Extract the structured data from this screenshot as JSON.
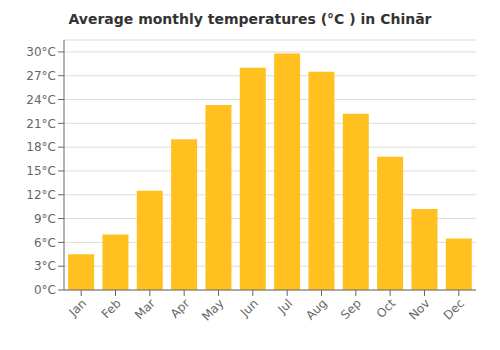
{
  "chart_data": {
    "type": "bar",
    "title": "Average monthly temperatures (°C ) in Chinār",
    "categories": [
      "Jan",
      "Feb",
      "Mar",
      "Apr",
      "May",
      "Jun",
      "Jul",
      "Aug",
      "Sep",
      "Oct",
      "Nov",
      "Dec"
    ],
    "values": [
      4.5,
      7.0,
      12.5,
      19.0,
      23.3,
      28.0,
      29.8,
      27.5,
      22.2,
      16.8,
      10.2,
      6.5
    ],
    "color": "#FFC020",
    "ylim": [
      0,
      31.5
    ],
    "yticks": [
      {
        "value": 0,
        "label": "0°C"
      },
      {
        "value": 3,
        "label": "3°C"
      },
      {
        "value": 6,
        "label": "6°C"
      },
      {
        "value": 9,
        "label": "9°C"
      },
      {
        "value": 12,
        "label": "12°C"
      },
      {
        "value": 15,
        "label": "15°C"
      },
      {
        "value": 18,
        "label": "18°C"
      },
      {
        "value": 21,
        "label": "21°C"
      },
      {
        "value": 24,
        "label": "24°C"
      },
      {
        "value": 27,
        "label": "27°C"
      },
      {
        "value": 30,
        "label": "30°C"
      }
    ],
    "grid": true
  }
}
